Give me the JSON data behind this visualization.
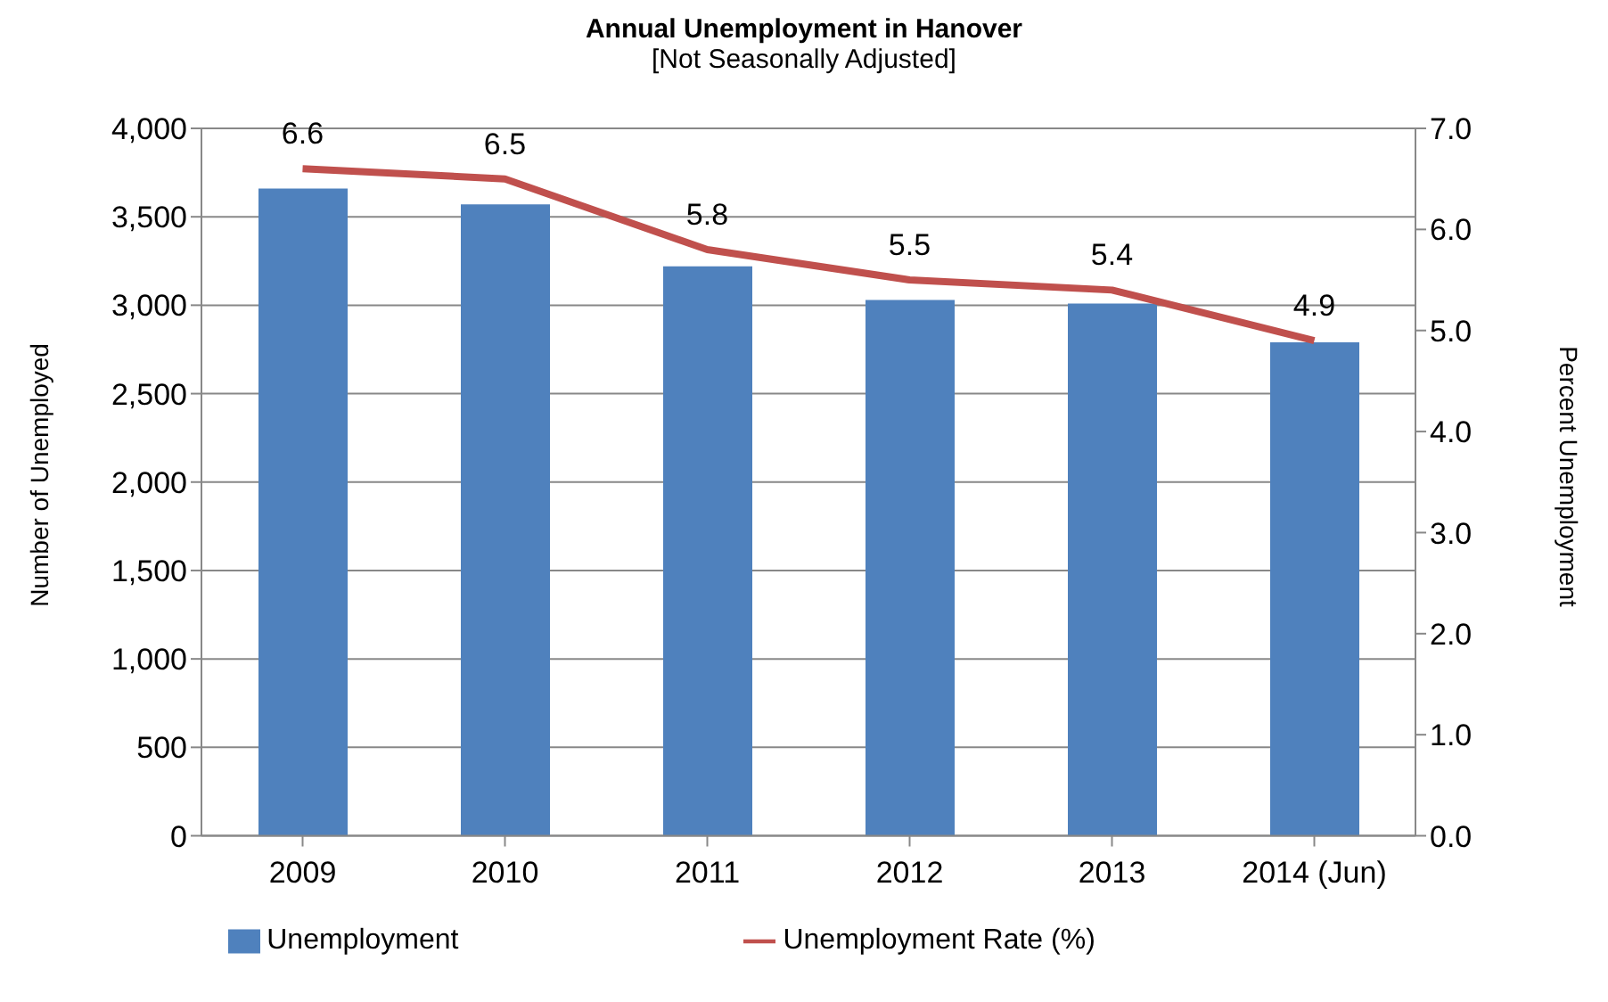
{
  "chart_data": {
    "type": "bar",
    "title": "Annual Unemployment in Hanover",
    "subtitle": "[Not Seasonally Adjusted]",
    "ylabel": "Number of Unemployed",
    "y2label": "Percent Unemployment",
    "categories": [
      "2009",
      "2010",
      "2011",
      "2012",
      "2013",
      "2014 (Jun)"
    ],
    "series": [
      {
        "name": "Unemployment",
        "color": "#4f81bd",
        "values": [
          3660,
          3570,
          3220,
          3030,
          3010,
          2790
        ]
      },
      {
        "name": "Unemployment Rate (%)",
        "type": "line",
        "axis": "y2",
        "color": "#c0504d",
        "values": [
          6.6,
          6.5,
          5.8,
          5.5,
          5.4,
          4.9
        ],
        "value_labels": [
          "6.6",
          "6.5",
          "5.8",
          "5.5",
          "5.4",
          "4.9"
        ]
      }
    ],
    "ylim": [
      0,
      4000
    ],
    "yticks": [
      {
        "value": 0,
        "label": "0"
      },
      {
        "value": 500,
        "label": "500"
      },
      {
        "value": 1000,
        "label": "1,000"
      },
      {
        "value": 1500,
        "label": "1,500"
      },
      {
        "value": 2000,
        "label": "2,000"
      },
      {
        "value": 2500,
        "label": "2,500"
      },
      {
        "value": 3000,
        "label": "3,000"
      },
      {
        "value": 3500,
        "label": "3,500"
      },
      {
        "value": 4000,
        "label": "4,000"
      }
    ],
    "y2lim": [
      0,
      7
    ],
    "y2ticks": [
      {
        "value": 0,
        "label": "0.0"
      },
      {
        "value": 1,
        "label": "1.0"
      },
      {
        "value": 2,
        "label": "2.0"
      },
      {
        "value": 3,
        "label": "3.0"
      },
      {
        "value": 4,
        "label": "4.0"
      },
      {
        "value": 5,
        "label": "5.0"
      },
      {
        "value": 6,
        "label": "6.0"
      },
      {
        "value": 7,
        "label": "7.0"
      }
    ],
    "grid": "y",
    "legend": "bottom",
    "marker": "none",
    "line_style": "solid"
  }
}
